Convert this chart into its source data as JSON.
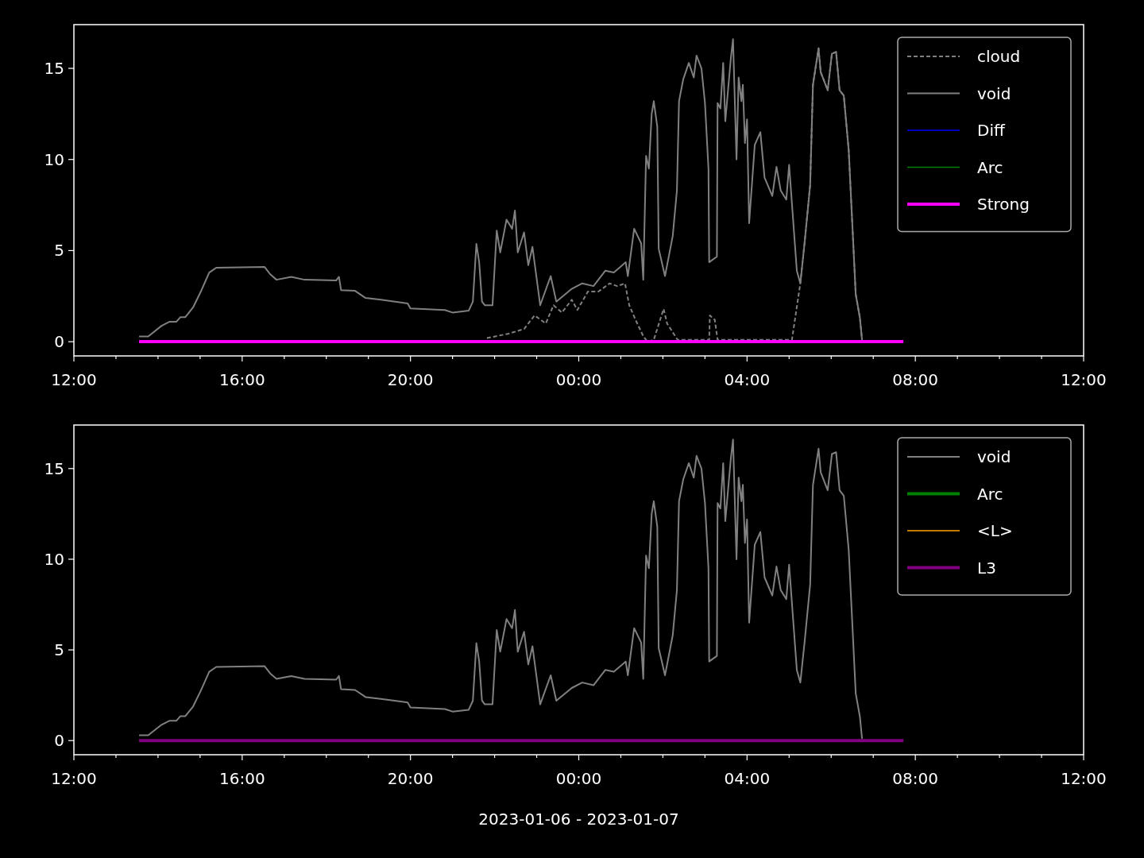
{
  "chart_data": [
    {
      "type": "line",
      "xlim": [
        "2023-01-06T12:00",
        "2023-01-07T12:00"
      ],
      "xticks": [
        {
          "value": "2023-01-06T12:00",
          "label": "12:00"
        },
        {
          "value": "2023-01-06T13:00",
          "label": null
        },
        {
          "value": "2023-01-06T14:00",
          "label": null
        },
        {
          "value": "2023-01-06T15:00",
          "label": null
        },
        {
          "value": "2023-01-06T16:00",
          "label": "16:00"
        },
        {
          "value": "2023-01-06T17:00",
          "label": null
        },
        {
          "value": "2023-01-06T18:00",
          "label": null
        },
        {
          "value": "2023-01-06T19:00",
          "label": null
        },
        {
          "value": "2023-01-06T20:00",
          "label": "20:00"
        },
        {
          "value": "2023-01-06T21:00",
          "label": null
        },
        {
          "value": "2023-01-06T22:00",
          "label": null
        },
        {
          "value": "2023-01-06T23:00",
          "label": null
        },
        {
          "value": "2023-01-07T00:00",
          "label": "00:00"
        },
        {
          "value": "2023-01-07T01:00",
          "label": null
        },
        {
          "value": "2023-01-07T02:00",
          "label": null
        },
        {
          "value": "2023-01-07T03:00",
          "label": null
        },
        {
          "value": "2023-01-07T04:00",
          "label": "04:00"
        },
        {
          "value": "2023-01-07T05:00",
          "label": null
        },
        {
          "value": "2023-01-07T06:00",
          "label": null
        },
        {
          "value": "2023-01-07T07:00",
          "label": null
        },
        {
          "value": "2023-01-07T08:00",
          "label": "08:00"
        },
        {
          "value": "2023-01-07T09:00",
          "label": null
        },
        {
          "value": "2023-01-07T10:00",
          "label": null
        },
        {
          "value": "2023-01-07T11:00",
          "label": null
        },
        {
          "value": "2023-01-07T12:00",
          "label": "12:00"
        }
      ],
      "ylim": [
        -0.78,
        17.4
      ],
      "yticks": [
        0,
        5,
        10,
        15
      ],
      "legend": "top right",
      "grid": false,
      "series": [
        {
          "name": "cloud",
          "color": "#808080",
          "line_style": "dashed",
          "x": [
            "2023-01-06T21:49",
            "2023-01-06T22:20",
            "2023-01-06T22:42",
            "2023-01-06T22:57",
            "2023-01-06T23:13",
            "2023-01-06T23:24",
            "2023-01-06T23:36",
            "2023-01-06T23:50",
            "2023-01-06T23:58",
            "2023-01-07T00:13",
            "2023-01-07T00:28",
            "2023-01-07T00:44",
            "2023-01-07T00:55",
            "2023-01-07T01:06",
            "2023-01-07T01:12",
            "2023-01-07T01:21",
            "2023-01-07T01:32",
            "2023-01-07T01:38",
            "2023-01-07T01:47",
            "2023-01-07T02:01",
            "2023-01-07T02:06",
            "2023-01-07T02:21",
            "2023-01-07T03:06",
            "2023-01-07T03:07",
            "2023-01-07T03:14",
            "2023-01-07T03:18",
            "2023-01-07T05:04",
            "2023-01-07T05:16",
            "2023-01-07T05:22",
            "2023-01-07T05:30",
            "2023-01-07T05:34",
            "2023-01-07T05:42",
            "2023-01-07T05:45",
            "2023-01-07T05:55",
            "2023-01-07T06:01",
            "2023-01-07T06:07",
            "2023-01-07T06:12",
            "2023-01-07T06:18",
            "2023-01-07T06:25",
            "2023-01-07T06:35",
            "2023-01-07T06:41",
            "2023-01-07T06:44"
          ],
          "values": [
            0.2,
            0.44,
            0.7,
            1.44,
            1.0,
            2.0,
            1.6,
            2.3,
            1.74,
            2.75,
            2.75,
            3.2,
            3.05,
            3.2,
            2.0,
            1.2,
            0.3,
            0,
            0.1,
            1.8,
            1.0,
            0.1,
            0.1,
            1.44,
            1.2,
            0.1,
            0.1,
            3.2,
            5.4,
            8.6,
            14.1,
            16.1,
            14.8,
            13.8,
            15.8,
            15.9,
            13.8,
            13.5,
            10.5,
            2.6,
            1.3,
            0.1
          ]
        },
        {
          "name": "void",
          "color": "#808080",
          "line_style": "solid",
          "x": [
            "2023-01-06T13:33",
            "2023-01-06T13:46",
            "2023-01-06T14:05",
            "2023-01-06T14:16",
            "2023-01-06T14:26",
            "2023-01-06T14:32",
            "2023-01-06T14:39",
            "2023-01-06T14:50",
            "2023-01-06T15:01",
            "2023-01-06T15:13",
            "2023-01-06T15:23",
            "2023-01-06T16:32",
            "2023-01-06T16:40",
            "2023-01-06T16:49",
            "2023-01-06T17:10",
            "2023-01-06T17:29",
            "2023-01-06T18:14",
            "2023-01-06T18:18",
            "2023-01-06T18:21",
            "2023-01-06T18:41",
            "2023-01-06T18:56",
            "2023-01-06T19:18",
            "2023-01-06T19:56",
            "2023-01-06T20:00",
            "2023-01-06T20:49",
            "2023-01-06T21:00",
            "2023-01-06T21:23",
            "2023-01-06T21:29",
            "2023-01-06T21:34",
            "2023-01-06T21:38",
            "2023-01-06T21:42",
            "2023-01-06T21:46",
            "2023-01-06T21:57",
            "2023-01-06T22:03",
            "2023-01-06T22:08",
            "2023-01-06T22:17",
            "2023-01-06T22:25",
            "2023-01-06T22:29",
            "2023-01-06T22:33",
            "2023-01-06T22:42",
            "2023-01-06T22:48",
            "2023-01-06T22:54",
            "2023-01-06T23:05",
            "2023-01-06T23:20",
            "2023-01-06T23:28",
            "2023-01-06T23:50",
            "2023-01-07T00:05",
            "2023-01-07T00:21",
            "2023-01-07T00:38",
            "2023-01-07T00:50",
            "2023-01-07T00:58",
            "2023-01-07T01:07",
            "2023-01-07T01:10",
            "2023-01-07T01:19",
            "2023-01-07T01:29",
            "2023-01-07T01:32",
            "2023-01-07T01:36",
            "2023-01-07T01:40",
            "2023-01-07T01:44",
            "2023-01-07T01:47",
            "2023-01-07T01:52",
            "2023-01-07T01:54",
            "2023-01-07T02:03",
            "2023-01-07T02:14",
            "2023-01-07T02:20",
            "2023-01-07T02:23",
            "2023-01-07T02:29",
            "2023-01-07T02:37",
            "2023-01-07T02:44",
            "2023-01-07T02:48",
            "2023-01-07T02:55",
            "2023-01-07T03:00",
            "2023-01-07T03:05",
            "2023-01-07T03:06",
            "2023-01-07T03:17",
            "2023-01-07T03:18",
            "2023-01-07T03:22",
            "2023-01-07T03:26",
            "2023-01-07T03:29",
            "2023-01-07T03:37",
            "2023-01-07T03:40",
            "2023-01-07T03:45",
            "2023-01-07T03:48",
            "2023-01-07T03:52",
            "2023-01-07T03:54",
            "2023-01-07T03:57",
            "2023-01-07T04:00",
            "2023-01-07T04:03",
            "2023-01-07T04:11",
            "2023-01-07T04:19",
            "2023-01-07T04:25",
            "2023-01-07T04:36",
            "2023-01-07T04:42",
            "2023-01-07T04:48",
            "2023-01-07T04:56",
            "2023-01-07T05:00",
            "2023-01-07T05:11",
            "2023-01-07T05:16",
            "2023-01-07T05:22",
            "2023-01-07T05:30",
            "2023-01-07T05:34",
            "2023-01-07T05:42",
            "2023-01-07T05:45",
            "2023-01-07T05:55",
            "2023-01-07T06:01",
            "2023-01-07T06:07",
            "2023-01-07T06:12",
            "2023-01-07T06:18",
            "2023-01-07T06:25",
            "2023-01-07T06:35",
            "2023-01-07T06:41",
            "2023-01-07T06:44"
          ],
          "values": [
            0.29,
            0.29,
            0.87,
            1.09,
            1.09,
            1.35,
            1.35,
            1.88,
            2.75,
            3.79,
            4.06,
            4.1,
            3.7,
            3.4,
            3.56,
            3.4,
            3.36,
            3.56,
            2.83,
            2.79,
            2.4,
            2.3,
            2.1,
            1.83,
            1.74,
            1.6,
            1.7,
            2.2,
            5.37,
            4.36,
            2.2,
            2.0,
            2.0,
            6.1,
            4.9,
            6.7,
            6.2,
            7.2,
            4.9,
            6.0,
            4.2,
            5.2,
            2.0,
            3.6,
            2.2,
            2.9,
            3.2,
            3.05,
            3.9,
            3.8,
            4.06,
            4.36,
            3.6,
            6.2,
            5.4,
            3.4,
            10.2,
            9.5,
            12.5,
            13.2,
            11.8,
            5.1,
            3.6,
            5.8,
            8.3,
            13.2,
            14.4,
            15.3,
            14.5,
            15.7,
            15.0,
            13.1,
            9.5,
            4.36,
            4.67,
            13.1,
            12.8,
            15.3,
            12.1,
            15.6,
            16.6,
            10.0,
            14.5,
            13.2,
            14.1,
            10.9,
            12.2,
            6.5,
            10.8,
            11.5,
            9.0,
            8.0,
            9.6,
            8.3,
            7.8,
            9.7,
            3.9,
            3.2,
            5.4,
            8.6,
            14.1,
            16.1,
            14.8,
            13.8,
            15.8,
            15.9,
            13.8,
            13.5,
            10.5,
            2.6,
            1.3,
            0.1
          ]
        },
        {
          "name": "Diff",
          "color": "#0000ff",
          "line_style": "solid"
        },
        {
          "name": "Arc",
          "color": "#008000",
          "line_style": "solid"
        },
        {
          "name": "Strong",
          "color": "#ff00ff",
          "line_style": "solid",
          "x": [
            "2023-01-06T13:33",
            "2023-01-07T07:43"
          ],
          "values": [
            0,
            0
          ]
        }
      ]
    },
    {
      "type": "line",
      "xlabel": "2023-01-06 - 2023-01-07",
      "xlim": [
        "2023-01-06T12:00",
        "2023-01-07T12:00"
      ],
      "xticks": [
        {
          "value": "2023-01-06T12:00",
          "label": "12:00"
        },
        {
          "value": "2023-01-06T13:00",
          "label": null
        },
        {
          "value": "2023-01-06T14:00",
          "label": null
        },
        {
          "value": "2023-01-06T15:00",
          "label": null
        },
        {
          "value": "2023-01-06T16:00",
          "label": "16:00"
        },
        {
          "value": "2023-01-06T17:00",
          "label": null
        },
        {
          "value": "2023-01-06T18:00",
          "label": null
        },
        {
          "value": "2023-01-06T19:00",
          "label": null
        },
        {
          "value": "2023-01-06T20:00",
          "label": "20:00"
        },
        {
          "value": "2023-01-06T21:00",
          "label": null
        },
        {
          "value": "2023-01-06T22:00",
          "label": null
        },
        {
          "value": "2023-01-06T23:00",
          "label": null
        },
        {
          "value": "2023-01-07T00:00",
          "label": "00:00"
        },
        {
          "value": "2023-01-07T01:00",
          "label": null
        },
        {
          "value": "2023-01-07T02:00",
          "label": null
        },
        {
          "value": "2023-01-07T03:00",
          "label": null
        },
        {
          "value": "2023-01-07T04:00",
          "label": "04:00"
        },
        {
          "value": "2023-01-07T05:00",
          "label": null
        },
        {
          "value": "2023-01-07T06:00",
          "label": null
        },
        {
          "value": "2023-01-07T07:00",
          "label": null
        },
        {
          "value": "2023-01-07T08:00",
          "label": "08:00"
        },
        {
          "value": "2023-01-07T09:00",
          "label": null
        },
        {
          "value": "2023-01-07T10:00",
          "label": null
        },
        {
          "value": "2023-01-07T11:00",
          "label": null
        },
        {
          "value": "2023-01-07T12:00",
          "label": "12:00"
        }
      ],
      "ylim": [
        -0.78,
        17.4
      ],
      "yticks": [
        0,
        5,
        10,
        15
      ],
      "legend": "top right",
      "grid": false,
      "series": [
        {
          "name": "void",
          "color": "#808080",
          "line_style": "solid",
          "x": [
            "2023-01-06T13:33",
            "2023-01-06T13:46",
            "2023-01-06T14:05",
            "2023-01-06T14:16",
            "2023-01-06T14:26",
            "2023-01-06T14:32",
            "2023-01-06T14:39",
            "2023-01-06T14:50",
            "2023-01-06T15:01",
            "2023-01-06T15:13",
            "2023-01-06T15:23",
            "2023-01-06T16:32",
            "2023-01-06T16:40",
            "2023-01-06T16:49",
            "2023-01-06T17:10",
            "2023-01-06T17:29",
            "2023-01-06T18:14",
            "2023-01-06T18:18",
            "2023-01-06T18:21",
            "2023-01-06T18:41",
            "2023-01-06T18:56",
            "2023-01-06T19:18",
            "2023-01-06T19:56",
            "2023-01-06T20:00",
            "2023-01-06T20:49",
            "2023-01-06T21:00",
            "2023-01-06T21:23",
            "2023-01-06T21:29",
            "2023-01-06T21:34",
            "2023-01-06T21:38",
            "2023-01-06T21:42",
            "2023-01-06T21:46",
            "2023-01-06T21:57",
            "2023-01-06T22:03",
            "2023-01-06T22:08",
            "2023-01-06T22:17",
            "2023-01-06T22:25",
            "2023-01-06T22:29",
            "2023-01-06T22:33",
            "2023-01-06T22:42",
            "2023-01-06T22:48",
            "2023-01-06T22:54",
            "2023-01-06T23:05",
            "2023-01-06T23:20",
            "2023-01-06T23:28",
            "2023-01-06T23:50",
            "2023-01-07T00:05",
            "2023-01-07T00:21",
            "2023-01-07T00:38",
            "2023-01-07T00:50",
            "2023-01-07T00:58",
            "2023-01-07T01:07",
            "2023-01-07T01:10",
            "2023-01-07T01:19",
            "2023-01-07T01:29",
            "2023-01-07T01:32",
            "2023-01-07T01:36",
            "2023-01-07T01:40",
            "2023-01-07T01:44",
            "2023-01-07T01:47",
            "2023-01-07T01:52",
            "2023-01-07T01:54",
            "2023-01-07T02:03",
            "2023-01-07T02:14",
            "2023-01-07T02:20",
            "2023-01-07T02:23",
            "2023-01-07T02:29",
            "2023-01-07T02:37",
            "2023-01-07T02:44",
            "2023-01-07T02:48",
            "2023-01-07T02:55",
            "2023-01-07T03:00",
            "2023-01-07T03:05",
            "2023-01-07T03:06",
            "2023-01-07T03:17",
            "2023-01-07T03:18",
            "2023-01-07T03:22",
            "2023-01-07T03:26",
            "2023-01-07T03:29",
            "2023-01-07T03:37",
            "2023-01-07T03:40",
            "2023-01-07T03:45",
            "2023-01-07T03:48",
            "2023-01-07T03:52",
            "2023-01-07T03:54",
            "2023-01-07T03:57",
            "2023-01-07T04:00",
            "2023-01-07T04:03",
            "2023-01-07T04:11",
            "2023-01-07T04:19",
            "2023-01-07T04:25",
            "2023-01-07T04:36",
            "2023-01-07T04:42",
            "2023-01-07T04:48",
            "2023-01-07T04:56",
            "2023-01-07T05:00",
            "2023-01-07T05:11",
            "2023-01-07T05:16",
            "2023-01-07T05:22",
            "2023-01-07T05:30",
            "2023-01-07T05:34",
            "2023-01-07T05:42",
            "2023-01-07T05:45",
            "2023-01-07T05:55",
            "2023-01-07T06:01",
            "2023-01-07T06:07",
            "2023-01-07T06:12",
            "2023-01-07T06:18",
            "2023-01-07T06:25",
            "2023-01-07T06:35",
            "2023-01-07T06:41",
            "2023-01-07T06:44"
          ],
          "values": [
            0.29,
            0.29,
            0.87,
            1.09,
            1.09,
            1.35,
            1.35,
            1.88,
            2.75,
            3.79,
            4.06,
            4.1,
            3.7,
            3.4,
            3.56,
            3.4,
            3.36,
            3.56,
            2.83,
            2.79,
            2.4,
            2.3,
            2.1,
            1.83,
            1.74,
            1.6,
            1.7,
            2.2,
            5.37,
            4.36,
            2.2,
            2.0,
            2.0,
            6.1,
            4.9,
            6.7,
            6.2,
            7.2,
            4.9,
            6.0,
            4.2,
            5.2,
            2.0,
            3.6,
            2.2,
            2.9,
            3.2,
            3.05,
            3.9,
            3.8,
            4.06,
            4.36,
            3.6,
            6.2,
            5.4,
            3.4,
            10.2,
            9.5,
            12.5,
            13.2,
            11.8,
            5.1,
            3.6,
            5.8,
            8.3,
            13.2,
            14.4,
            15.3,
            14.5,
            15.7,
            15.0,
            13.1,
            9.5,
            4.36,
            4.67,
            13.1,
            12.8,
            15.3,
            12.1,
            15.6,
            16.6,
            10.0,
            14.5,
            13.2,
            14.1,
            10.9,
            12.2,
            6.5,
            10.8,
            11.5,
            9.0,
            8.0,
            9.6,
            8.3,
            7.8,
            9.7,
            3.9,
            3.2,
            5.4,
            8.6,
            14.1,
            16.1,
            14.8,
            13.8,
            15.8,
            15.9,
            13.8,
            13.5,
            10.5,
            2.6,
            1.3,
            0.1
          ]
        },
        {
          "name": "Arc",
          "color": "#008000",
          "line_style": "solid"
        },
        {
          "name": "<L>",
          "color": "#ffa500",
          "line_style": "solid"
        },
        {
          "name": "L3",
          "color": "#800080",
          "line_style": "solid",
          "x": [
            "2023-01-06T13:33",
            "2023-01-07T07:43"
          ],
          "values": [
            0,
            0
          ]
        }
      ]
    }
  ]
}
